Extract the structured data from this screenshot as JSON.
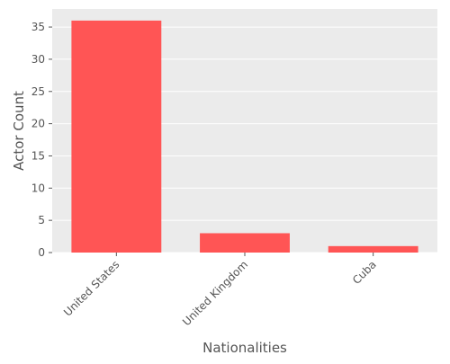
{
  "chart_data": {
    "type": "bar",
    "categories": [
      "United States",
      "United Kingdom",
      "Cuba"
    ],
    "values": [
      36,
      3,
      1
    ],
    "xlabel": "Nationalities",
    "ylabel": "Actor Count",
    "ylim": [
      0,
      37.8
    ],
    "yticks": [
      0,
      5,
      10,
      15,
      20,
      25,
      30,
      35
    ],
    "grid": true,
    "legend": "none",
    "colors": {
      "bar": "#ff5555",
      "panel": "#ebebeb",
      "grid": "#ffffff",
      "text": "#555555"
    }
  }
}
